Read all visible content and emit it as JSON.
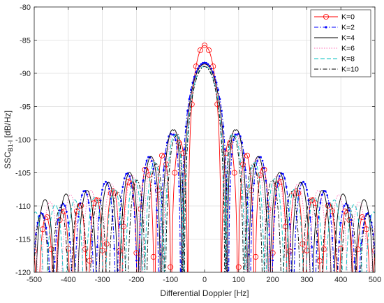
{
  "chart_data": {
    "type": "line",
    "title": "",
    "xlabel": "Differential Doppler [Hz]",
    "ylabel": {
      "main": "SSC",
      "subscript": "B1-I",
      "unit": " [dB/Hz]"
    },
    "xlim": [
      -500,
      500
    ],
    "ylim": [
      -120,
      -80
    ],
    "xticks": [
      -500,
      -400,
      -300,
      -200,
      -100,
      0,
      100,
      200,
      300,
      400,
      500
    ],
    "yticks": [
      -120,
      -115,
      -110,
      -105,
      -100,
      -95,
      -90,
      -85,
      -80
    ],
    "grid": true,
    "legend_position": "top-right",
    "series": [
      {
        "name": "K=0",
        "color": "#ff0000",
        "style": "solid",
        "marker": "circle",
        "peak": -85.8,
        "main_lobe_null": 49,
        "side_lobe_spacing": 49,
        "side_lobe_peaks": [
          [
            49,
            -98.8
          ],
          [
            74,
            -100.4
          ],
          [
            123,
            -102.2
          ],
          [
            172,
            -104.2
          ],
          [
            221,
            -105.9
          ],
          [
            270,
            -107.4
          ],
          [
            319,
            -108.7
          ],
          [
            368,
            -109.6
          ],
          [
            417,
            -110.6
          ],
          [
            466,
            -111.6
          ]
        ]
      },
      {
        "name": "K=2",
        "color": "#0000ff",
        "style": "dash-dot",
        "marker": "point",
        "peak": -88.4,
        "main_lobe_null": 70,
        "side_lobe_spacing": 63,
        "side_lobe_peaks": [
          [
            95,
            -98.8
          ],
          [
            155,
            -102.2
          ],
          [
            215,
            -104.8
          ],
          [
            283,
            -106.2
          ],
          [
            350,
            -107.6
          ],
          [
            413,
            -109.6
          ],
          [
            466,
            -110.8
          ]
        ]
      },
      {
        "name": "K=4",
        "color": "#000000",
        "style": "solid",
        "marker": "none",
        "peak": -88.6,
        "main_lobe_null": 66,
        "side_lobe_spacing": 62,
        "side_lobe_peaks": [
          [
            91,
            -98.2
          ],
          [
            150,
            -102.2
          ],
          [
            210,
            -104.7
          ],
          [
            272,
            -106.2
          ],
          [
            336,
            -107.6
          ],
          [
            400,
            -108.1
          ],
          [
            462,
            -108.9
          ]
        ]
      },
      {
        "name": "K=6",
        "color": "#ff69b4",
        "style": "dotted",
        "marker": "none",
        "peak": -88.7,
        "main_lobe_null": 64,
        "side_lobe_spacing": 60,
        "side_lobe_peaks": [
          [
            89,
            -98.8
          ],
          [
            148,
            -102.6
          ],
          [
            207,
            -105.2
          ],
          [
            268,
            -106.6
          ],
          [
            330,
            -107.6
          ],
          [
            393,
            -108.3
          ],
          [
            455,
            -109.4
          ]
        ]
      },
      {
        "name": "K=8",
        "color": "#00bfbf",
        "style": "dashed",
        "marker": "none",
        "peak": -88.9,
        "main_lobe_null": 62,
        "side_lobe_spacing": 58,
        "side_lobe_peaks": [
          [
            87,
            -99.2
          ],
          [
            145,
            -103.3
          ],
          [
            203,
            -105.8
          ],
          [
            262,
            -107.4
          ],
          [
            322,
            -108.7
          ],
          [
            384,
            -109.1
          ],
          [
            446,
            -109.9
          ]
        ]
      },
      {
        "name": "K=10",
        "color": "#000000",
        "style": "dash-dot",
        "marker": "none",
        "peak": -89.0,
        "main_lobe_null": 60,
        "side_lobe_spacing": 56,
        "side_lobe_peaks": [
          [
            85,
            -99.4
          ],
          [
            142,
            -103.6
          ],
          [
            199,
            -106.1
          ],
          [
            257,
            -107.9
          ],
          [
            316,
            -109.1
          ],
          [
            376,
            -109.6
          ],
          [
            437,
            -110.4
          ]
        ]
      }
    ]
  }
}
